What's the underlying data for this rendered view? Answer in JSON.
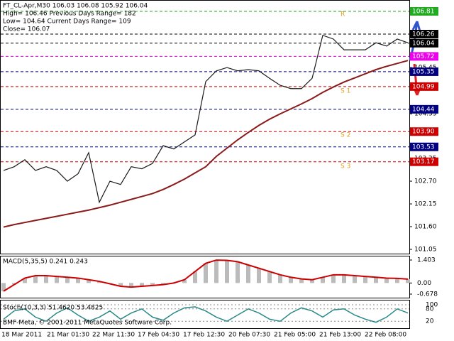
{
  "chart_data": {
    "type": "line",
    "header": [
      "FT_CL-Apr,M30  106.03 106.08 105.92 106.04",
      "High= 106.46    Previous Days Range= 182",
      "Low= 104.64   Current Days Range= 109",
      "Close= 106.07"
    ],
    "series": [
      {
        "name": "Close",
        "color": "#1a1a1a",
        "values": [
          102.96,
          103.05,
          103.22,
          102.96,
          103.05,
          102.96,
          102.7,
          102.88,
          103.39,
          102.19,
          102.7,
          102.62,
          103.05,
          103.0,
          103.13,
          103.56,
          103.48,
          103.65,
          103.82,
          105.11,
          105.37,
          105.45,
          105.37,
          105.4,
          105.37,
          105.19,
          105.02,
          104.94,
          104.94,
          105.19,
          106.23,
          106.14,
          105.88,
          105.88,
          105.88,
          106.05,
          105.97,
          106.14,
          106.05
        ]
      },
      {
        "name": "MA",
        "color": "#8b1a1a",
        "values": [
          101.59,
          101.65,
          101.7,
          101.75,
          101.8,
          101.85,
          101.9,
          101.95,
          102.0,
          102.06,
          102.12,
          102.19,
          102.26,
          102.33,
          102.4,
          102.5,
          102.62,
          102.75,
          102.9,
          103.05,
          103.3,
          103.5,
          103.7,
          103.88,
          104.05,
          104.2,
          104.33,
          104.45,
          104.57,
          104.7,
          104.85,
          104.98,
          105.1,
          105.2,
          105.3,
          105.4,
          105.48,
          105.55,
          105.62
        ]
      }
    ],
    "ylim": [
      101.05,
      106.81
    ],
    "yticks": [
      105.45,
      104.33,
      103.25,
      {
        "value": 102.7,
        "label": "102.70"
      },
      102.15,
      {
        "value": 101.6,
        "label": "101.60"
      },
      101.05
    ],
    "levels": [
      {
        "value": 106.81,
        "label": "106.81",
        "color": "#22aa22"
      },
      {
        "value": 106.26,
        "label": "106.26",
        "color": "#000000"
      },
      {
        "value": 106.04,
        "label": "106.04",
        "color": "#000000"
      },
      {
        "value": 105.72,
        "label": "105.72",
        "color": "#ee00ee"
      },
      {
        "value": 105.35,
        "label": "105.35",
        "color": "#000080"
      },
      {
        "value": 104.99,
        "label": "104.99",
        "color": "#cc0000"
      },
      {
        "value": 104.44,
        "label": "104.44",
        "color": "#000080"
      },
      {
        "value": 103.9,
        "label": "103.90",
        "color": "#cc0000"
      },
      {
        "value": 103.53,
        "label": "103.53",
        "color": "#000080"
      },
      {
        "value": 103.17,
        "label": "103.17",
        "color": "#cc0000"
      }
    ],
    "pivot_labels": [
      "R",
      "S 1",
      "S 2",
      "S 3"
    ],
    "time_labels": [
      "18 Mar 2011",
      "21 Mar 01:30",
      "22 Mar 11:30",
      "17 Feb 04:30",
      "17 Feb 12:30",
      "20 Feb 07:30",
      "21 Feb 05:00",
      "21 Feb 13:00",
      "22 Feb 08:00"
    ],
    "macd": {
      "title": "MACD(5,35,5) 0.241 0.243",
      "color": "#cc0000",
      "values": [
        -0.5,
        -0.1,
        0.3,
        0.45,
        0.45,
        0.4,
        0.35,
        0.3,
        0.2,
        0.1,
        -0.05,
        -0.2,
        -0.25,
        -0.2,
        -0.15,
        -0.1,
        0.0,
        0.2,
        0.7,
        1.2,
        1.4,
        1.38,
        1.3,
        1.1,
        0.9,
        0.7,
        0.5,
        0.35,
        0.25,
        0.2,
        0.35,
        0.5,
        0.5,
        0.45,
        0.4,
        0.35,
        0.3,
        0.28,
        0.24
      ],
      "ylim": [
        -0.678,
        1.403
      ],
      "yticks": [
        1.403,
        {
          "value": 0,
          "label": "0.00"
        },
        -0.678
      ]
    },
    "stoch": {
      "title": "Stoch(10,3,3) 51.4620 53.4825",
      "color": "#2a8a8a",
      "values": [
        30,
        70,
        80,
        40,
        20,
        60,
        85,
        50,
        20,
        40,
        70,
        30,
        60,
        80,
        40,
        25,
        60,
        85,
        90,
        70,
        40,
        20,
        50,
        80,
        60,
        30,
        20,
        60,
        85,
        70,
        40,
        75,
        80,
        50,
        30,
        15,
        40,
        80,
        60
      ],
      "ylim": [
        0,
        100
      ],
      "yticks": [
        100,
        80,
        20
      ]
    },
    "copyright": "BMF-Meta, © 2001-2011 MetaQuotes Software Corp."
  }
}
